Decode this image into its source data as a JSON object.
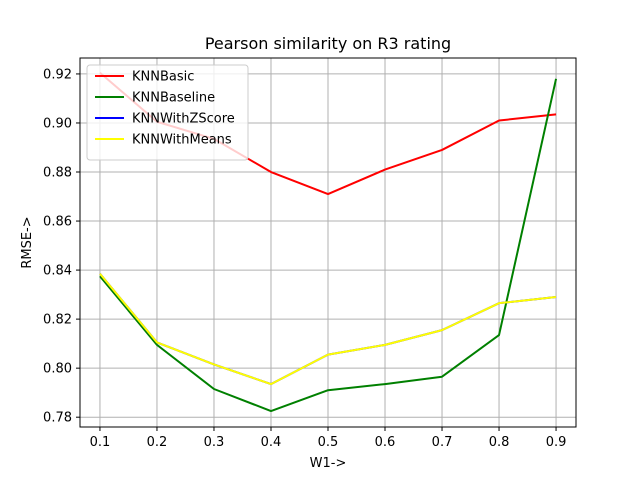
{
  "chart_data": {
    "type": "line",
    "title": "Pearson similarity on R3 rating",
    "xlabel": "W1->",
    "ylabel": "RMSE->",
    "x": [
      0.1,
      0.2,
      0.3,
      0.4,
      0.5,
      0.6,
      0.7,
      0.8,
      0.9
    ],
    "x_ticks": [
      "0.1",
      "0.2",
      "0.3",
      "0.4",
      "0.5",
      "0.6",
      "0.7",
      "0.8",
      "0.9"
    ],
    "y_ticks": [
      "0.78",
      "0.80",
      "0.82",
      "0.84",
      "0.86",
      "0.88",
      "0.90",
      "0.92"
    ],
    "xlim": [
      0.065,
      0.935
    ],
    "ylim": [
      0.776,
      0.9265
    ],
    "grid": true,
    "legend_position": "upper-left",
    "series": [
      {
        "name": "KNNBasic",
        "color": "#ff0000",
        "values": [
          0.9205,
          0.9005,
          0.8935,
          0.88,
          0.871,
          0.881,
          0.889,
          0.901,
          0.9035
        ]
      },
      {
        "name": "KNNBaseline",
        "color": "#008000",
        "values": [
          0.8375,
          0.8095,
          0.7915,
          0.7825,
          0.791,
          0.7935,
          0.7965,
          0.8135,
          0.918
        ]
      },
      {
        "name": "KNNWithZScore",
        "color": "#0000ff",
        "values": [
          0.8385,
          0.8105,
          0.8015,
          0.7935,
          0.8055,
          0.8095,
          0.8155,
          0.8265,
          0.829
        ]
      },
      {
        "name": "KNNWithMeans",
        "color": "#ffff00",
        "values": [
          0.8385,
          0.8105,
          0.8015,
          0.7935,
          0.8055,
          0.8095,
          0.8155,
          0.8265,
          0.829
        ]
      }
    ]
  }
}
